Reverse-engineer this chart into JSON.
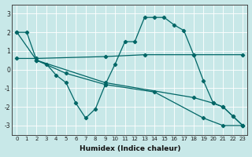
{
  "title": "",
  "xlabel": "Humidex (Indice chaleur)",
  "ylabel": "",
  "bg_color": "#c8e8e8",
  "grid_color": "#d0e8e0",
  "line_color": "#006666",
  "xlim": [
    -0.5,
    23.5
  ],
  "ylim": [
    -3.5,
    3.5
  ],
  "yticks": [
    -3,
    -2,
    -1,
    0,
    1,
    2,
    3
  ],
  "xticks": [
    0,
    1,
    2,
    3,
    4,
    5,
    6,
    7,
    8,
    9,
    10,
    11,
    12,
    13,
    14,
    15,
    16,
    17,
    18,
    19,
    20,
    21,
    22,
    23
  ],
  "series": [
    {
      "x": [
        0,
        1,
        2,
        3,
        4,
        5,
        6,
        7,
        8,
        9,
        10,
        11,
        12,
        13,
        14,
        15,
        16,
        17,
        18,
        19,
        20,
        21,
        22,
        23
      ],
      "y": [
        2.0,
        2.0,
        0.5,
        0.3,
        -0.3,
        -0.7,
        -1.8,
        -2.6,
        -2.1,
        -0.8,
        0.3,
        1.5,
        1.5,
        2.8,
        2.8,
        2.8,
        2.4,
        2.1,
        0.8,
        -0.6,
        -1.8,
        -2.0,
        -2.5,
        -3.0
      ]
    },
    {
      "x": [
        0,
        2,
        9,
        13,
        18,
        23
      ],
      "y": [
        0.6,
        0.6,
        0.7,
        0.8,
        0.8,
        0.8
      ]
    },
    {
      "x": [
        0,
        2,
        9,
        18,
        20,
        21,
        22,
        23
      ],
      "y": [
        2.0,
        0.5,
        -0.7,
        -1.5,
        -1.8,
        -2.0,
        -2.5,
        -3.0
      ]
    },
    {
      "x": [
        2,
        5,
        9,
        14,
        19,
        21,
        23
      ],
      "y": [
        0.5,
        -0.2,
        -0.8,
        -1.2,
        -2.6,
        -3.0,
        -3.0
      ]
    }
  ]
}
